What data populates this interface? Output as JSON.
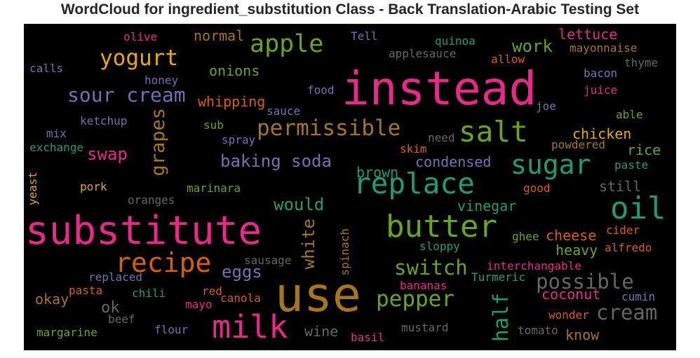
{
  "chart_data": {
    "type": "wordcloud",
    "title": "WordCloud for ingredient_substitution Class - Back Translation-Arabic Testing Set",
    "background": "#000000",
    "palette": [
      "#1b9e77",
      "#d95f02",
      "#7570b3",
      "#e7298a",
      "#66a61e",
      "#e6ab02",
      "#a6761d",
      "#666666"
    ],
    "words": [
      {
        "text": "instead",
        "color": "#e7298a"
      },
      {
        "text": "substitute",
        "color": "#e7298a"
      },
      {
        "text": "use",
        "color": "#a6761d"
      },
      {
        "text": "milk",
        "color": "#e7298a"
      },
      {
        "text": "butter",
        "color": "#66a61e"
      },
      {
        "text": "oil",
        "color": "#1b9e77"
      },
      {
        "text": "replace",
        "color": "#1b9e77"
      },
      {
        "text": "salt",
        "color": "#66a61e"
      },
      {
        "text": "sugar",
        "color": "#1b9e77"
      },
      {
        "text": "recipe",
        "color": "#d95f02"
      },
      {
        "text": "apple",
        "color": "#66a61e"
      },
      {
        "text": "sour cream",
        "color": "#7570b3"
      },
      {
        "text": "yogurt",
        "color": "#e6ab02"
      },
      {
        "text": "permissible",
        "color": "#a6761d"
      },
      {
        "text": "pepper",
        "color": "#66a61e"
      },
      {
        "text": "cream",
        "color": "#666666"
      },
      {
        "text": "possible",
        "color": "#666666"
      },
      {
        "text": "switch",
        "color": "#66a61e"
      },
      {
        "text": "half",
        "color": "#1b9e77"
      },
      {
        "text": "grapes",
        "color": "#a6761d"
      },
      {
        "text": "baking soda",
        "color": "#7570b3"
      },
      {
        "text": "eggs",
        "color": "#7570b3"
      },
      {
        "text": "swap",
        "color": "#e7298a"
      },
      {
        "text": "would",
        "color": "#1b9e77"
      },
      {
        "text": "work",
        "color": "#66a61e"
      },
      {
        "text": "white",
        "color": "#a6761d"
      },
      {
        "text": "onions",
        "color": "#66a61e"
      },
      {
        "text": "whipping",
        "color": "#d95f02"
      },
      {
        "text": "chicken",
        "color": "#e6ab02"
      },
      {
        "text": "condensed",
        "color": "#7570b3"
      },
      {
        "text": "cheese",
        "color": "#d95f02"
      },
      {
        "text": "coconut",
        "color": "#e7298a"
      },
      {
        "text": "heavy",
        "color": "#66a61e"
      },
      {
        "text": "vinegar",
        "color": "#1b9e77"
      },
      {
        "text": "brown",
        "color": "#1b9e77"
      },
      {
        "text": "rice",
        "color": "#66a61e"
      },
      {
        "text": "still",
        "color": "#666666"
      },
      {
        "text": "lettuce",
        "color": "#e7298a"
      },
      {
        "text": "normal",
        "color": "#a6761d"
      },
      {
        "text": "ok",
        "color": "#666666"
      },
      {
        "text": "okay",
        "color": "#a6761d"
      },
      {
        "text": "know",
        "color": "#a6761d"
      },
      {
        "text": "wine",
        "color": "#666666"
      },
      {
        "text": "olive",
        "color": "#e7298a"
      },
      {
        "text": "Tell",
        "color": "#7570b3"
      },
      {
        "text": "quinoa",
        "color": "#1b9e77"
      },
      {
        "text": "applesauce",
        "color": "#666666"
      },
      {
        "text": "mayonnaise",
        "color": "#a6761d"
      },
      {
        "text": "allow",
        "color": "#d95f02"
      },
      {
        "text": "thyme",
        "color": "#666666"
      },
      {
        "text": "calls",
        "color": "#7570b3"
      },
      {
        "text": "honey",
        "color": "#7570b3"
      },
      {
        "text": "bacon",
        "color": "#7570b3"
      },
      {
        "text": "food",
        "color": "#7570b3"
      },
      {
        "text": "juice",
        "color": "#e7298a"
      },
      {
        "text": "sauce",
        "color": "#7570b3"
      },
      {
        "text": "joe",
        "color": "#7570b3"
      },
      {
        "text": "ketchup",
        "color": "#7570b3"
      },
      {
        "text": "sub",
        "color": "#66a61e"
      },
      {
        "text": "able",
        "color": "#66a61e"
      },
      {
        "text": "mix",
        "color": "#7570b3"
      },
      {
        "text": "spray",
        "color": "#7570b3"
      },
      {
        "text": "need",
        "color": "#666666"
      },
      {
        "text": "powdered",
        "color": "#a6761d"
      },
      {
        "text": "exchange",
        "color": "#1b9e77"
      },
      {
        "text": "skim",
        "color": "#d95f02"
      },
      {
        "text": "paste",
        "color": "#1b9e77"
      },
      {
        "text": "yeast",
        "color": "#e6ab02"
      },
      {
        "text": "pork",
        "color": "#e6ab02"
      },
      {
        "text": "marinara",
        "color": "#66a61e"
      },
      {
        "text": "good",
        "color": "#d95f02"
      },
      {
        "text": "oranges",
        "color": "#666666"
      },
      {
        "text": "cider",
        "color": "#d95f02"
      },
      {
        "text": "spinach",
        "color": "#a6761d"
      },
      {
        "text": "ghee",
        "color": "#66a61e"
      },
      {
        "text": "sloppy",
        "color": "#1b9e77"
      },
      {
        "text": "alfredo",
        "color": "#d95f02"
      },
      {
        "text": "sausage",
        "color": "#666666"
      },
      {
        "text": "interchangable",
        "color": "#e7298a"
      },
      {
        "text": "replaced",
        "color": "#7570b3"
      },
      {
        "text": "Turmeric",
        "color": "#1b9e77"
      },
      {
        "text": "pasta",
        "color": "#d95f02"
      },
      {
        "text": "chili",
        "color": "#1b9e77"
      },
      {
        "text": "red",
        "color": "#d95f02"
      },
      {
        "text": "canola",
        "color": "#d95f02"
      },
      {
        "text": "bananas",
        "color": "#e7298a"
      },
      {
        "text": "cumin",
        "color": "#7570b3"
      },
      {
        "text": "mayo",
        "color": "#e7298a"
      },
      {
        "text": "beef",
        "color": "#666666"
      },
      {
        "text": "wonder",
        "color": "#d95f02"
      },
      {
        "text": "margarine",
        "color": "#66a61e"
      },
      {
        "text": "flour",
        "color": "#7570b3"
      },
      {
        "text": "mustard",
        "color": "#666666"
      },
      {
        "text": "tomato",
        "color": "#666666"
      },
      {
        "text": "basil",
        "color": "#e7298a"
      }
    ]
  }
}
